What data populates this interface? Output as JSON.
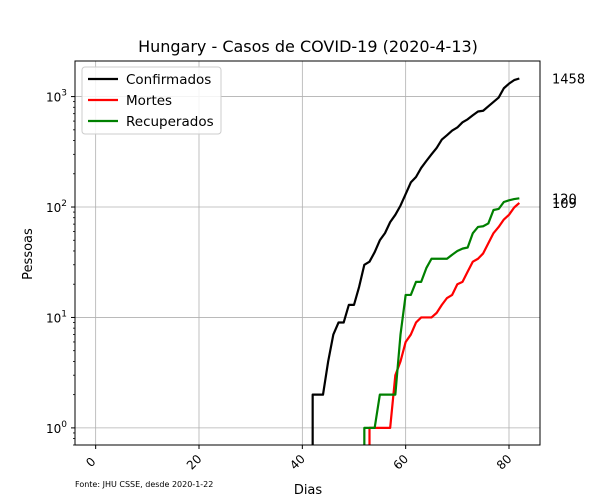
{
  "chart_data": {
    "type": "line",
    "title": "Hungary - Casos de COVID-19 (2020-4-13)",
    "xlabel": "Dias",
    "ylabel": "Pessoas",
    "y_scale": "log",
    "xlim": [
      -4,
      86
    ],
    "ylim": [
      0.7,
      2100
    ],
    "x_ticks": [
      0,
      20,
      40,
      60,
      80
    ],
    "y_ticks": [
      {
        "value": 1,
        "base": "10",
        "exp": "0"
      },
      {
        "value": 10,
        "base": "10",
        "exp": "1"
      },
      {
        "value": 100,
        "base": "10",
        "exp": "2"
      },
      {
        "value": 1000,
        "base": "10",
        "exp": "3"
      }
    ],
    "grid": true,
    "legend_position": "top-left",
    "source_note": "Fonte: JHU CSSE, desde 2020-1-22",
    "series": [
      {
        "name": "Confirmados",
        "color": "#000000",
        "end_label": "1458",
        "x": [
          42,
          43,
          44,
          45,
          46,
          47,
          48,
          49,
          50,
          51,
          52,
          53,
          54,
          55,
          56,
          57,
          58,
          59,
          60,
          61,
          62,
          63,
          64,
          65,
          66,
          67,
          68,
          69,
          70,
          71,
          72,
          73,
          74,
          75,
          76,
          77,
          78,
          79,
          80,
          81,
          82
        ],
        "y": [
          2,
          2,
          2,
          4,
          7,
          9,
          9,
          13,
          13,
          19,
          30,
          32,
          39,
          50,
          58,
          73,
          85,
          103,
          131,
          167,
          187,
          226,
          261,
          300,
          343,
          408,
          447,
          492,
          525,
          585,
          623,
          678,
          733,
          744,
          817,
          895,
          980,
          1190,
          1310,
          1410,
          1458
        ]
      },
      {
        "name": "Mortes",
        "color": "#ff0000",
        "end_label": "109",
        "x": [
          53,
          54,
          55,
          56,
          57,
          58,
          59,
          60,
          61,
          62,
          63,
          64,
          65,
          66,
          67,
          68,
          69,
          70,
          71,
          72,
          73,
          74,
          75,
          76,
          77,
          78,
          79,
          80,
          81,
          82
        ],
        "y": [
          1,
          1,
          1,
          1,
          1,
          3,
          4,
          6,
          7,
          9,
          10,
          10,
          10,
          11,
          13,
          15,
          16,
          20,
          21,
          26,
          32,
          34,
          38,
          47,
          58,
          66,
          77,
          85,
          99,
          109
        ]
      },
      {
        "name": "Recuperados",
        "color": "#008000",
        "end_label": "120",
        "x": [
          52,
          53,
          54,
          55,
          56,
          57,
          58,
          59,
          60,
          61,
          62,
          63,
          64,
          65,
          66,
          67,
          68,
          69,
          70,
          71,
          72,
          73,
          74,
          75,
          76,
          77,
          78,
          79,
          80,
          81,
          82
        ],
        "y": [
          1,
          1,
          1,
          2,
          2,
          2,
          2,
          7,
          16,
          16,
          21,
          21,
          28,
          34,
          34,
          34,
          34,
          37,
          40,
          42,
          43,
          58,
          66,
          67,
          71,
          94,
          96,
          111,
          115,
          118,
          120
        ]
      }
    ]
  }
}
